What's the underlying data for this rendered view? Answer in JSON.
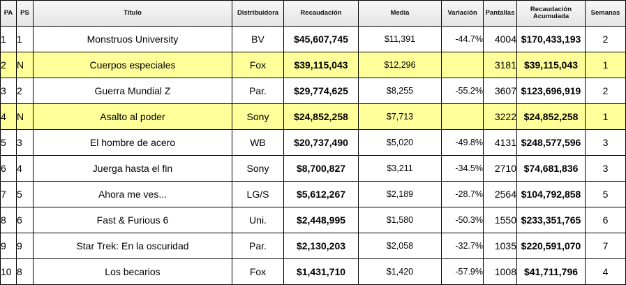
{
  "headers": {
    "pa": "PA",
    "ps": "PS",
    "titulo": "Título",
    "distribuidora": "Distribuidora",
    "recaudacion": "Recaudación",
    "media": "Media",
    "variacion": "Variación",
    "pantallas": "Pantallas",
    "acumulada_line1": "Recaudación",
    "acumulada_line2": "Acumulada",
    "semanas": "Semanas"
  },
  "colors": {
    "new_entry_highlight": "#ffff99",
    "header_bg": "#ececec",
    "border": "#000000"
  },
  "rows": [
    {
      "pa": "1",
      "ps": "1",
      "titulo": "Monstruos University",
      "distribuidora": "BV",
      "recaudacion": "$45,607,745",
      "media": "$11,391",
      "variacion": "-44.7%",
      "pantallas": "4004",
      "acumulada": "$170,433,193",
      "semanas": "2"
    },
    {
      "pa": "2",
      "ps": "N",
      "titulo": "Cuerpos especiales",
      "distribuidora": "Fox",
      "recaudacion": "$39,115,043",
      "media": "$12,296",
      "variacion": "",
      "pantallas": "3181",
      "acumulada": "$39,115,043",
      "semanas": "1"
    },
    {
      "pa": "3",
      "ps": "2",
      "titulo": "Guerra Mundial Z",
      "distribuidora": "Par.",
      "recaudacion": "$29,774,625",
      "media": "$8,255",
      "variacion": "-55.2%",
      "pantallas": "3607",
      "acumulada": "$123,696,919",
      "semanas": "2"
    },
    {
      "pa": "4",
      "ps": "N",
      "titulo": "Asalto al poder",
      "distribuidora": "Sony",
      "recaudacion": "$24,852,258",
      "media": "$7,713",
      "variacion": "",
      "pantallas": "3222",
      "acumulada": "$24,852,258",
      "semanas": "1"
    },
    {
      "pa": "5",
      "ps": "3",
      "titulo": "El hombre de acero",
      "distribuidora": "WB",
      "recaudacion": "$20,737,490",
      "media": "$5,020",
      "variacion": "-49.8%",
      "pantallas": "4131",
      "acumulada": "$248,577,596",
      "semanas": "3"
    },
    {
      "pa": "6",
      "ps": "4",
      "titulo": "Juerga hasta el fin",
      "distribuidora": "Sony",
      "recaudacion": "$8,700,827",
      "media": "$3,211",
      "variacion": "-34.5%",
      "pantallas": "2710",
      "acumulada": "$74,681,836",
      "semanas": "3"
    },
    {
      "pa": "7",
      "ps": "5",
      "titulo": "Ahora me ves...",
      "distribuidora": "LG/S",
      "recaudacion": "$5,612,267",
      "media": "$2,189",
      "variacion": "-28.7%",
      "pantallas": "2564",
      "acumulada": "$104,792,858",
      "semanas": "5"
    },
    {
      "pa": "8",
      "ps": "6",
      "titulo": "Fast & Furious 6",
      "distribuidora": "Uni.",
      "recaudacion": "$2,448,995",
      "media": "$1,580",
      "variacion": "-50.3%",
      "pantallas": "1550",
      "acumulada": "$233,351,765",
      "semanas": "6"
    },
    {
      "pa": "9",
      "ps": "9",
      "titulo": "Star Trek: En la oscuridad",
      "distribuidora": "Par.",
      "recaudacion": "$2,130,203",
      "media": "$2,058",
      "variacion": "-32.7%",
      "pantallas": "1035",
      "acumulada": "$220,591,070",
      "semanas": "7"
    },
    {
      "pa": "10",
      "ps": "8",
      "titulo": "Los becarios",
      "distribuidora": "Fox",
      "recaudacion": "$1,431,710",
      "media": "$1,420",
      "variacion": "-57.9%",
      "pantallas": "1008",
      "acumulada": "$41,711,796",
      "semanas": "4"
    }
  ]
}
